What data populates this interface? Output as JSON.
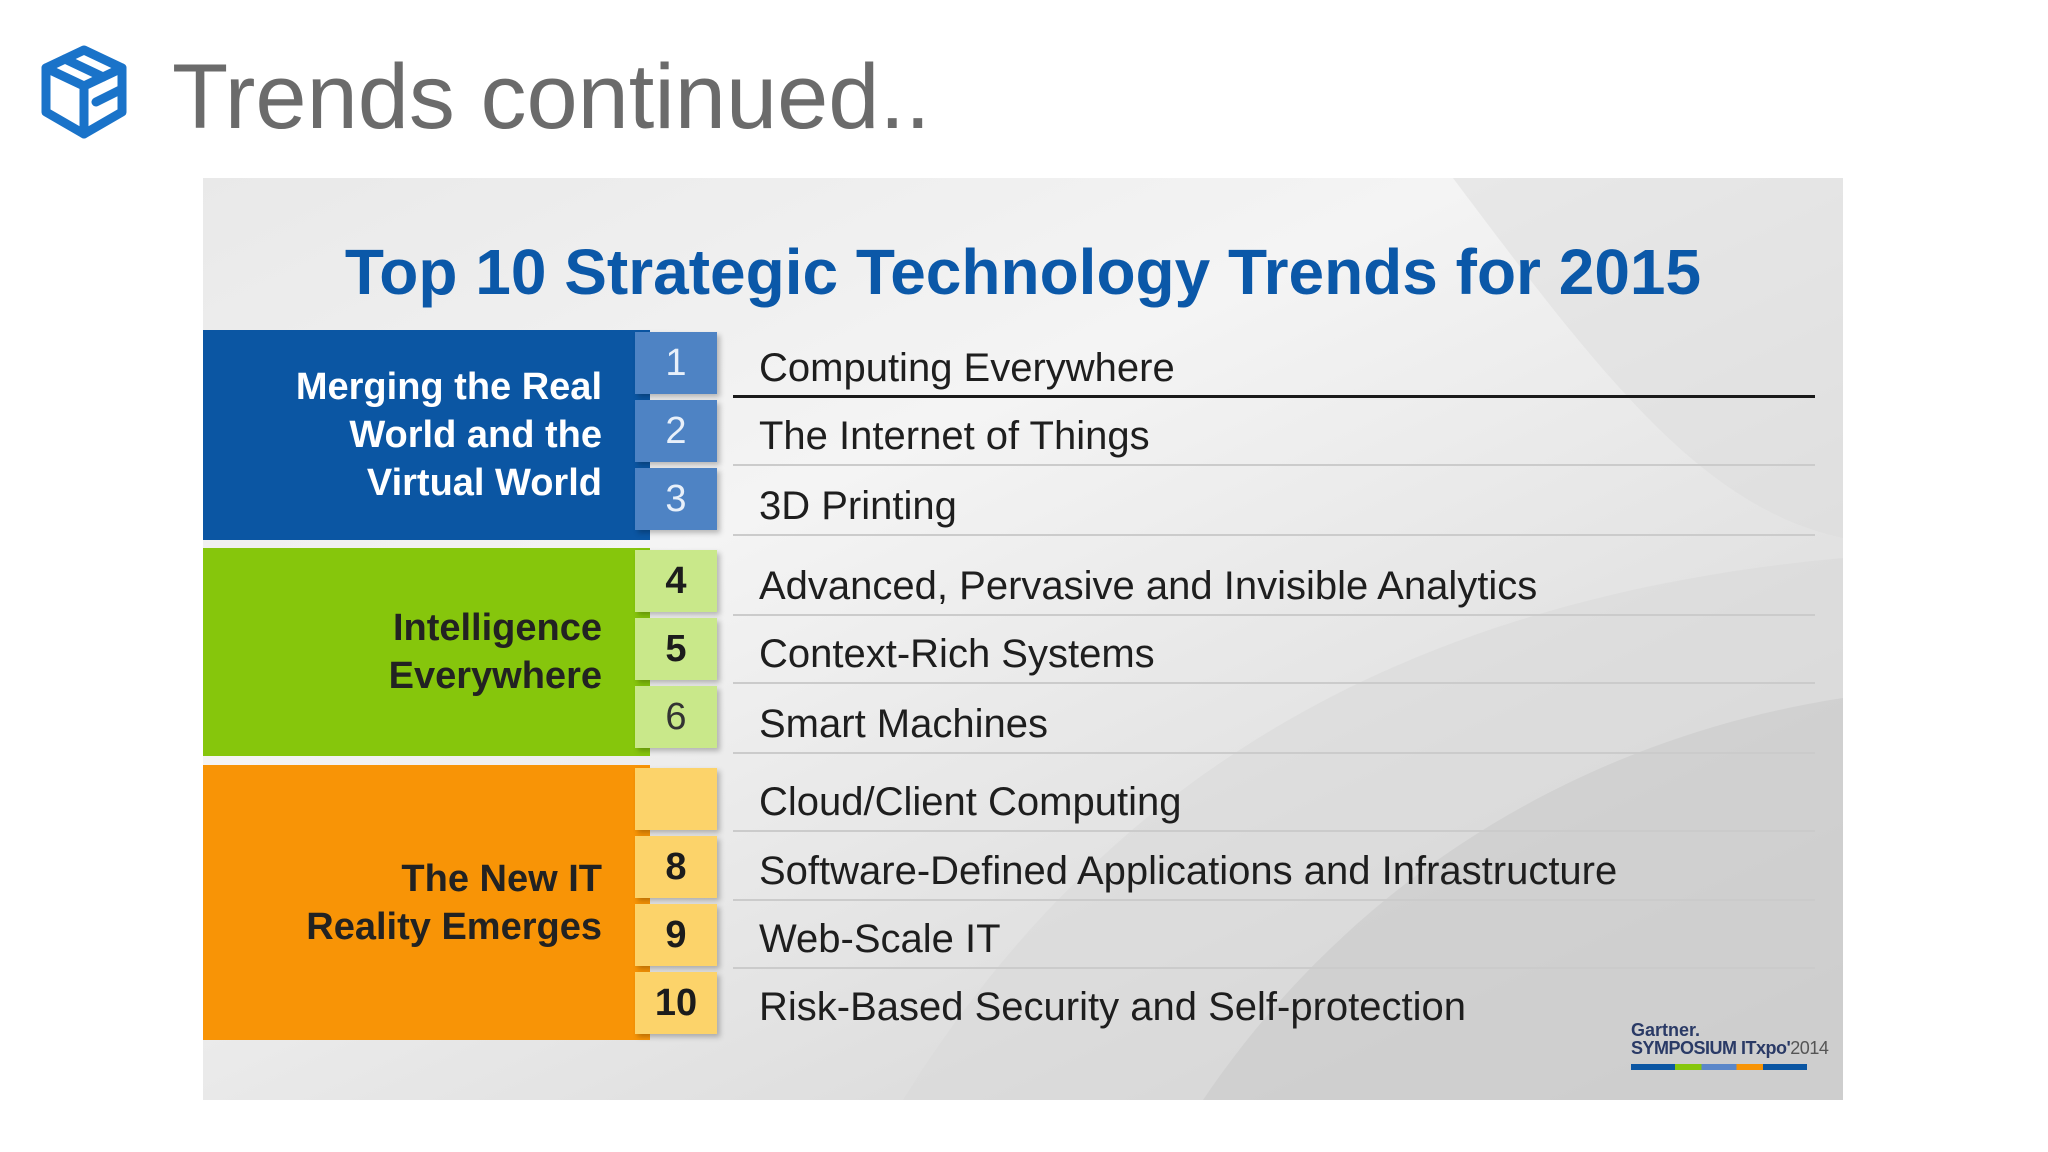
{
  "slide": {
    "title": "Trends continued..",
    "logo_icon": "cube-stack-icon"
  },
  "panel": {
    "title": "Top 10 Strategic Technology Trends for 2015",
    "groups": [
      {
        "label": "Merging the Real World and the Virtual World",
        "lines": [
          "Merging the Real",
          "World and the",
          "Virtual World"
        ],
        "color": "#0b56a3"
      },
      {
        "label": "Intelligence Everywhere",
        "lines": [
          "Intelligence",
          "Everywhere"
        ],
        "color": "#86c60c"
      },
      {
        "label": "The New IT Reality Emerges",
        "lines": [
          "The New IT",
          "Reality Emerges"
        ],
        "color": "#f89406"
      }
    ],
    "trends": [
      {
        "num": "1",
        "text": "Computing Everywhere"
      },
      {
        "num": "2",
        "text": "The Internet of Things"
      },
      {
        "num": "3",
        "text": "3D Printing"
      },
      {
        "num": "4",
        "text": "Advanced, Pervasive and Invisible Analytics"
      },
      {
        "num": "5",
        "text": "Context-Rich Systems"
      },
      {
        "num": "6",
        "text": "Smart Machines"
      },
      {
        "num": "",
        "text": "Cloud/Client Computing"
      },
      {
        "num": "8",
        "text": "Software-Defined Applications and Infrastructure"
      },
      {
        "num": "9",
        "text": "Web-Scale IT"
      },
      {
        "num": "10",
        "text": "Risk-Based Security and Self-protection"
      }
    ],
    "badge": {
      "brand": "Gartner.",
      "event": "SYMPOSIUM ITxpo",
      "year": "2014"
    }
  }
}
